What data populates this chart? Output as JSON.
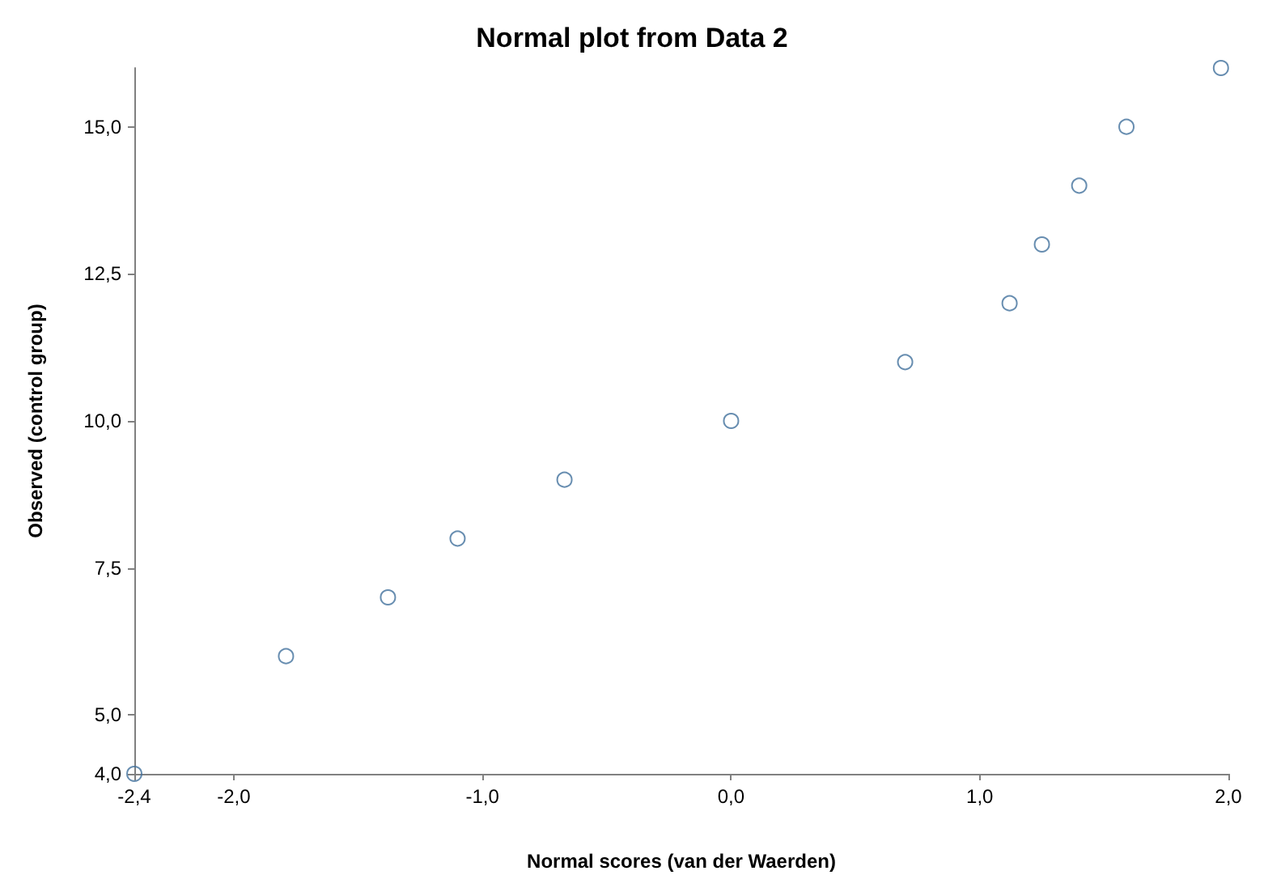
{
  "chart_data": {
    "type": "scatter",
    "title": "Normal plot from Data 2",
    "xlabel": "Normal scores (van der Waerden)",
    "ylabel": "Observed (control group)",
    "x": [
      -2.4,
      -1.79,
      -1.38,
      -1.1,
      -0.67,
      0.0,
      0.7,
      1.12,
      1.25,
      1.4,
      1.59,
      1.97
    ],
    "series": [
      {
        "color": "#41719c",
        "values": [
          4,
          6,
          7,
          8,
          9,
          10,
          11,
          12,
          13,
          14,
          15,
          16
        ]
      }
    ],
    "xlim": [
      -2.4,
      2.0
    ],
    "xticks": [
      {
        "value": -2.4,
        "label": "-2,4"
      },
      {
        "value": -2.0,
        "label": "-2,0"
      },
      {
        "value": -1.0,
        "label": "-1,0"
      },
      {
        "value": 0.0,
        "label": "0,0"
      },
      {
        "value": 1.0,
        "label": "1,0"
      },
      {
        "value": 2.0,
        "label": "2,0"
      }
    ],
    "ylim": [
      4,
      16
    ],
    "yticks": [
      {
        "value": 4,
        "label": "4,0"
      },
      {
        "value": 5,
        "label": "5,0"
      },
      {
        "value": 7.5,
        "label": "7,5"
      },
      {
        "value": 10,
        "label": "10,0"
      },
      {
        "value": 12.5,
        "label": "12,5"
      },
      {
        "value": 15,
        "label": "15,0"
      }
    ],
    "grid": false,
    "marker": "circle"
  }
}
